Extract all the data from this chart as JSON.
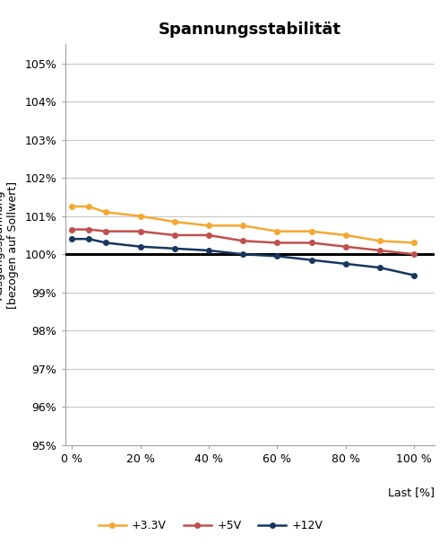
{
  "title": "Spannungsstabilität",
  "xlabel": "Last [%]",
  "ylabel": "Ausgangsspannung\n[bezogen auf Sollwert]",
  "x_values": [
    0,
    5,
    10,
    20,
    30,
    40,
    50,
    60,
    70,
    80,
    90,
    100
  ],
  "series_33V": {
    "label": "+3.3V",
    "color": "#F4A833",
    "values": [
      1.0125,
      1.0125,
      1.011,
      1.01,
      1.0085,
      1.0075,
      1.0075,
      1.006,
      1.006,
      1.005,
      1.0035,
      1.003
    ]
  },
  "series_5V": {
    "label": "+5V",
    "color": "#C0504D",
    "values": [
      1.0065,
      1.0065,
      1.006,
      1.006,
      1.005,
      1.005,
      1.0035,
      1.003,
      1.003,
      1.002,
      1.001,
      1.0
    ]
  },
  "series_12V": {
    "label": "+12V",
    "color": "#17375E",
    "values": [
      1.004,
      1.004,
      1.003,
      1.002,
      1.0015,
      1.001,
      1.0,
      0.9995,
      0.9985,
      0.9975,
      0.9965,
      0.9945
    ]
  },
  "ylim": [
    0.95,
    1.055
  ],
  "yticks": [
    0.95,
    0.96,
    0.97,
    0.98,
    0.99,
    1.0,
    1.01,
    1.02,
    1.03,
    1.04,
    1.05
  ],
  "xticks": [
    0,
    20,
    40,
    60,
    80,
    100
  ],
  "xtick_labels": [
    "0 %",
    "20 %",
    "40 %",
    "60 %",
    "80 %",
    "100 %"
  ],
  "ref_line_y": 1.0,
  "ref_line_color": "#000000",
  "background_color": "#FFFFFF",
  "grid_color": "#C8C8C8",
  "title_fontsize": 13,
  "axis_label_fontsize": 9,
  "tick_fontsize": 9,
  "legend_fontsize": 9,
  "font_family": "DejaVu Sans"
}
